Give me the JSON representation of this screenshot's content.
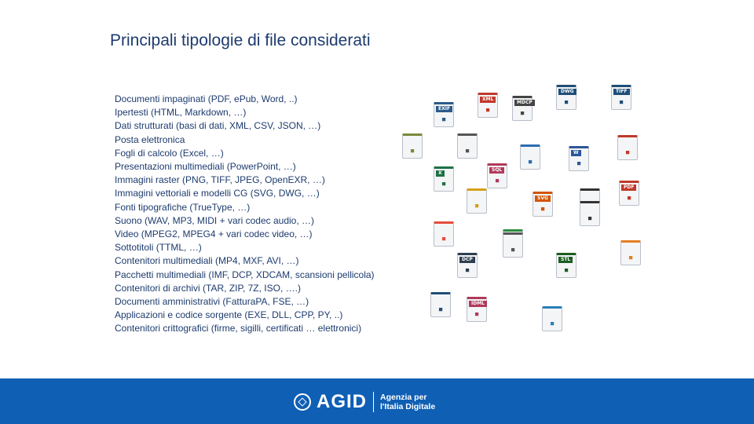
{
  "title": "Principali tipologie di file considerati",
  "items": [
    "Documenti impaginati  (PDF, ePub, Word, ..)",
    "Ipertesti  (HTML, Markdown, …)",
    "Dati strutturati  (basi di dati, XML, CSV, JSON, …)",
    "Posta elettronica",
    "Fogli di calcolo  (Excel, …)",
    "Presentazioni multimediali (PowerPoint, …)",
    "Immagini raster  (PNG, TIFF, JPEG, OpenEXR, …)",
    "Immagini vettoriali e modelli CG  (SVG, DWG, …)",
    "Fonti tipografiche  (TrueType, …)",
    "Suono  (WAV, MP3, MIDI + vari codec audio, …)",
    "Video  (MPEG2, MPEG4 + vari codec video, …)",
    "Sottotitoli  (TTML, …)",
    "Contenitori multimediali  (MP4, MXF, AVI, …)",
    "Pacchetti multimediali  (IMF, DCP, XDCAM, scansioni pellicola)",
    "Contenitori di archivi (TAR, ZIP, 7Z, ISO, ….)",
    "Documenti amministrativi (FatturaPA, FSE, …)",
    "Applicazioni e codice sorgente  (EXE, DLL, CPP, PY, ..)",
    "Contenitori crittografici  (firme, sigilli, certificati … elettronici)"
  ],
  "icons": [
    {
      "name": "exif-icon",
      "tag": "EXIF",
      "color": "#2b5c8a"
    },
    {
      "name": "xml-icon",
      "tag": "XML",
      "color": "#c0392b"
    },
    {
      "name": "mdcp-icon",
      "tag": "MDCP",
      "color": "#444444"
    },
    {
      "name": "dwg-icon",
      "tag": "DWG",
      "color": "#1f4e79"
    },
    {
      "name": "tiff-icon",
      "tag": "TIFF",
      "color": "#1f4e79"
    },
    {
      "name": "epub-icon",
      "tag": "",
      "color": "#7a8a3a"
    },
    {
      "name": "json-icon",
      "tag": "",
      "color": "#555555"
    },
    {
      "name": "scanner-icon",
      "tag": "",
      "color": "#2b6cb0"
    },
    {
      "name": "word-icon",
      "tag": "W",
      "color": "#2b579a"
    },
    {
      "name": "audio-wave-icon",
      "tag": "",
      "color": "#c0392b"
    },
    {
      "name": "excel-icon",
      "tag": "X",
      "color": "#1e7145"
    },
    {
      "name": "sql-icon",
      "tag": "SQL",
      "color": "#b03a5b"
    },
    {
      "name": "zip-icon",
      "tag": "",
      "color": "#d4a017"
    },
    {
      "name": "svg-icon",
      "tag": "SVG",
      "color": "#d35400"
    },
    {
      "name": "midi-icon",
      "tag": "",
      "color": "#333333"
    },
    {
      "name": "pdf-icon",
      "tag": "PDF",
      "color": "#c0392b"
    },
    {
      "name": "image-icon",
      "tag": "",
      "color": "#e74c3c"
    },
    {
      "name": "xslt-icon",
      "tag": "XSLT",
      "color": "#2e8b3e"
    },
    {
      "name": "disc-icon",
      "tag": "",
      "color": "#333333"
    },
    {
      "name": "dcp-icon",
      "tag": "DCP",
      "color": "#2c3e50"
    },
    {
      "name": "dpx-icon",
      "tag": "",
      "color": "#555555"
    },
    {
      "name": "stl-icon",
      "tag": "STL",
      "color": "#1b5e20"
    },
    {
      "name": "presentation-icon",
      "tag": "",
      "color": "#e67e22"
    },
    {
      "name": "font-icon",
      "tag": "",
      "color": "#1f4e79"
    },
    {
      "name": "idml-icon",
      "tag": "IDML",
      "color": "#b03a5b"
    },
    {
      "name": "certificate-icon",
      "tag": "",
      "color": "#2980b9"
    }
  ],
  "footer": {
    "brand": "AGID",
    "sub_line1": "Agenzia per",
    "sub_line2": "l'Italia Digitale"
  }
}
